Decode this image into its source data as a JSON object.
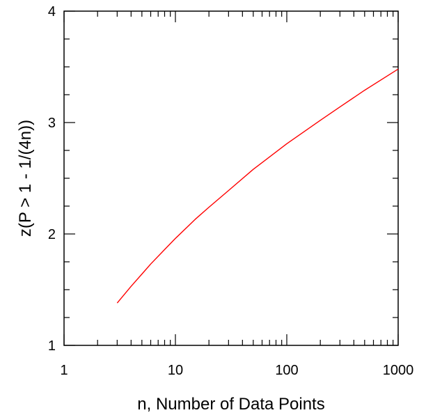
{
  "chart_data": {
    "type": "line",
    "title": "",
    "xlabel": "n, Number of Data Points",
    "ylabel": "z(P > 1 - 1/(4n))",
    "xscale": "log",
    "xlim": [
      1,
      1000
    ],
    "ylim": [
      1,
      4
    ],
    "x_ticks": [
      1,
      10,
      100,
      1000
    ],
    "x_tick_labels": [
      "1",
      "10",
      "100",
      "1000"
    ],
    "y_ticks": [
      1,
      2,
      3,
      4
    ],
    "y_tick_labels": [
      "1",
      "2",
      "3",
      "4"
    ],
    "grid": false,
    "series": [
      {
        "color": "#ff0000",
        "x": [
          3,
          4,
          5,
          6,
          8,
          10,
          15,
          20,
          30,
          50,
          100,
          200,
          300,
          500,
          1000
        ],
        "y": [
          1.38,
          1.53,
          1.64,
          1.73,
          1.86,
          1.96,
          2.13,
          2.24,
          2.39,
          2.58,
          2.81,
          3.02,
          3.14,
          3.29,
          3.48
        ]
      }
    ]
  }
}
